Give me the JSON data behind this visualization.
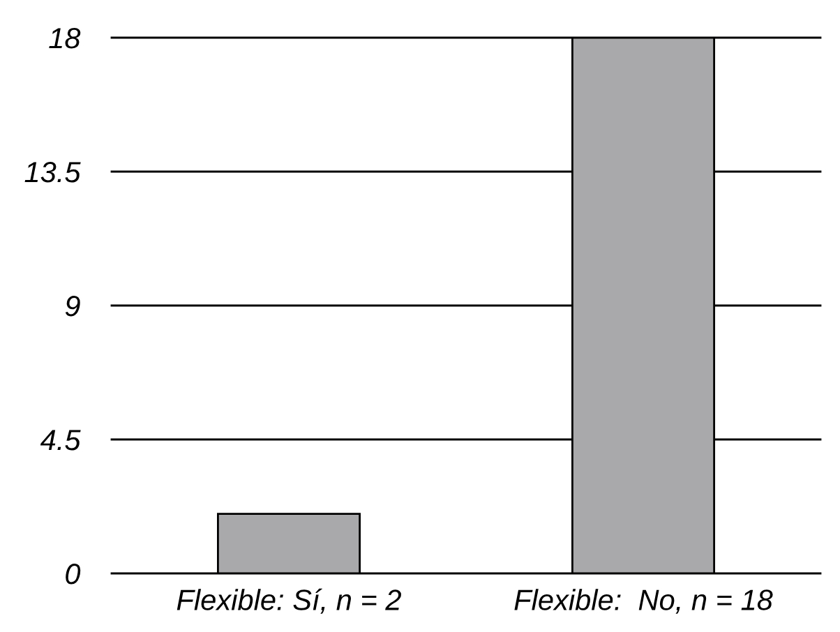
{
  "chart_data": {
    "type": "bar",
    "categories": [
      "Flexible: Sí, n = 2",
      "Flexible:  No, n = 18"
    ],
    "values": [
      2,
      18
    ],
    "color": "#a9a9ab",
    "ylim": [
      0,
      18
    ],
    "yticks": [
      0,
      4.5,
      9,
      13.5,
      18
    ],
    "grid": "y",
    "legend": false
  }
}
